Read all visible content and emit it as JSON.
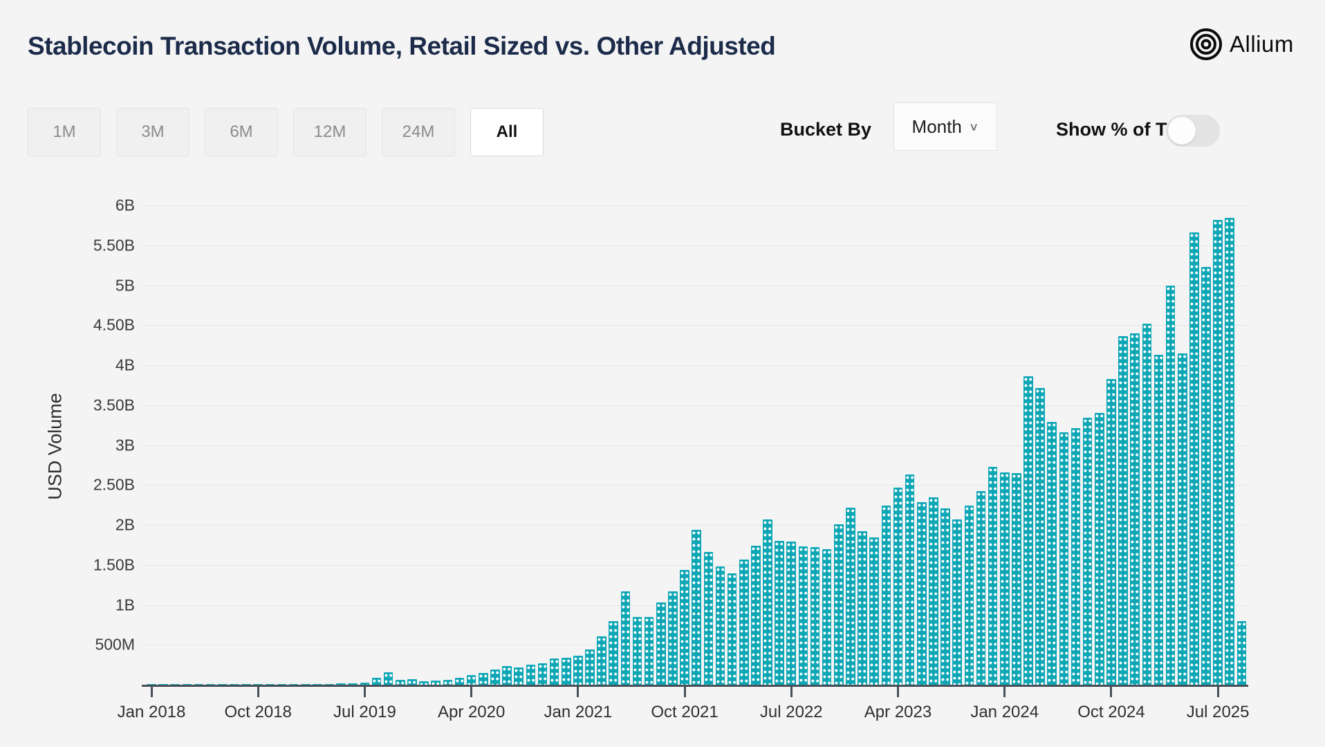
{
  "header": {
    "title": "Stablecoin Transaction Volume, Retail Sized vs. Other Adjusted",
    "brand": "Allium"
  },
  "toolbar": {
    "ranges": [
      {
        "label": "1M",
        "active": false
      },
      {
        "label": "3M",
        "active": false
      },
      {
        "label": "6M",
        "active": false
      },
      {
        "label": "12M",
        "active": false
      },
      {
        "label": "24M",
        "active": false
      },
      {
        "label": "All",
        "active": true
      }
    ]
  },
  "controls": {
    "bucket_by_label": "Bucket By",
    "bucket_value": "Month",
    "chevron": "∨",
    "show_pct_label": "Show % of Total",
    "toggle_state": "off"
  },
  "colors": {
    "bar": "#0da6b5",
    "bar_dot": "#ffffff",
    "background": "#f4f4f5",
    "gridline": "#e7e7e8",
    "axis": "#474f57",
    "title_text": "#1c2b49"
  },
  "chart_data": {
    "type": "bar",
    "title": "Stablecoin Transaction Volume, Retail Sized vs. Other Adjusted",
    "xlabel": "",
    "ylabel": "USD Volume",
    "unit": "USD billions",
    "ylim": [
      0,
      6.2
    ],
    "grid": true,
    "yticks": [
      {
        "value": 6.0,
        "label": "6B"
      },
      {
        "value": 5.5,
        "label": "5.50B"
      },
      {
        "value": 5.0,
        "label": "5B"
      },
      {
        "value": 4.5,
        "label": "4.50B"
      },
      {
        "value": 4.0,
        "label": "4B"
      },
      {
        "value": 3.5,
        "label": "3.50B"
      },
      {
        "value": 3.0,
        "label": "3B"
      },
      {
        "value": 2.5,
        "label": "2.50B"
      },
      {
        "value": 2.0,
        "label": "2B"
      },
      {
        "value": 1.5,
        "label": "1.50B"
      },
      {
        "value": 1.0,
        "label": "1B"
      },
      {
        "value": 0.5,
        "label": "500M"
      }
    ],
    "xticks": [
      {
        "index": 0,
        "label": "Jan 2018"
      },
      {
        "index": 9,
        "label": "Oct 2018"
      },
      {
        "index": 18,
        "label": "Jul 2019"
      },
      {
        "index": 27,
        "label": "Apr 2020"
      },
      {
        "index": 36,
        "label": "Jan 2021"
      },
      {
        "index": 45,
        "label": "Oct 2021"
      },
      {
        "index": 54,
        "label": "Jul 2022"
      },
      {
        "index": 63,
        "label": "Apr 2023"
      },
      {
        "index": 72,
        "label": "Jan 2024"
      },
      {
        "index": 81,
        "label": "Oct 2024"
      },
      {
        "index": 90,
        "label": "Jul 2025"
      }
    ],
    "categories": [
      "2018-01",
      "2018-02",
      "2018-03",
      "2018-04",
      "2018-05",
      "2018-06",
      "2018-07",
      "2018-08",
      "2018-09",
      "2018-10",
      "2018-11",
      "2018-12",
      "2019-01",
      "2019-02",
      "2019-03",
      "2019-04",
      "2019-05",
      "2019-06",
      "2019-07",
      "2019-08",
      "2019-09",
      "2019-10",
      "2019-11",
      "2019-12",
      "2020-01",
      "2020-02",
      "2020-03",
      "2020-04",
      "2020-05",
      "2020-06",
      "2020-07",
      "2020-08",
      "2020-09",
      "2020-10",
      "2020-11",
      "2020-12",
      "2021-01",
      "2021-02",
      "2021-03",
      "2021-04",
      "2021-05",
      "2021-06",
      "2021-07",
      "2021-08",
      "2021-09",
      "2021-10",
      "2021-11",
      "2021-12",
      "2022-01",
      "2022-02",
      "2022-03",
      "2022-04",
      "2022-05",
      "2022-06",
      "2022-07",
      "2022-08",
      "2022-09",
      "2022-10",
      "2022-11",
      "2022-12",
      "2023-01",
      "2023-02",
      "2023-03",
      "2023-04",
      "2023-05",
      "2023-06",
      "2023-07",
      "2023-08",
      "2023-09",
      "2023-10",
      "2023-11",
      "2023-12",
      "2024-01",
      "2024-02",
      "2024-03",
      "2024-04",
      "2024-05",
      "2024-06",
      "2024-07",
      "2024-08",
      "2024-09",
      "2024-10",
      "2024-11",
      "2024-12",
      "2025-01",
      "2025-02",
      "2025-03",
      "2025-04",
      "2025-05",
      "2025-06",
      "2025-07",
      "2025-08",
      "2025-09"
    ],
    "values": [
      0.004,
      0.004,
      0.004,
      0.004,
      0.005,
      0.005,
      0.005,
      0.006,
      0.006,
      0.007,
      0.008,
      0.008,
      0.008,
      0.009,
      0.01,
      0.012,
      0.015,
      0.02,
      0.03,
      0.09,
      0.16,
      0.06,
      0.07,
      0.04,
      0.05,
      0.06,
      0.09,
      0.12,
      0.15,
      0.19,
      0.23,
      0.22,
      0.25,
      0.27,
      0.33,
      0.34,
      0.36,
      0.44,
      0.61,
      0.8,
      1.17,
      0.85,
      0.85,
      1.03,
      1.17,
      1.44,
      1.94,
      1.66,
      1.48,
      1.39,
      1.57,
      1.74,
      2.07,
      1.8,
      1.79,
      1.73,
      1.72,
      1.7,
      2.01,
      2.22,
      1.92,
      1.84,
      2.24,
      2.47,
      2.63,
      2.29,
      2.35,
      2.21,
      2.07,
      2.24,
      2.42,
      2.73,
      2.66,
      2.65,
      3.86,
      3.71,
      3.29,
      3.16,
      3.21,
      3.34,
      3.4,
      3.83,
      4.36,
      4.4,
      4.52,
      4.13,
      5.0,
      4.15,
      5.66,
      5.23,
      5.82,
      5.84,
      0.8
    ]
  }
}
